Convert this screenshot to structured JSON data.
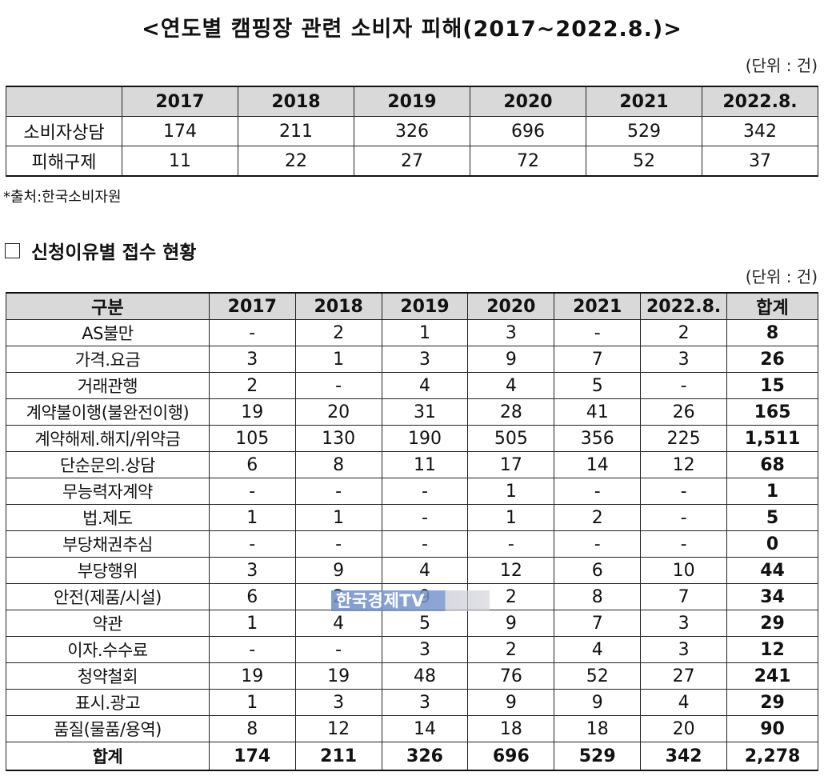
{
  "title": "<연도별 캠핑장 관련 소비자 피해(2017~2022.8.)>",
  "unit_top": "(단위 : 건)",
  "table1": {
    "headers": [
      "",
      "2017",
      "2018",
      "2019",
      "2020",
      "2021",
      "2022.8."
    ],
    "rows": [
      [
        "소비자상담",
        "174",
        "211",
        "326",
        "696",
        "529",
        "342"
      ],
      [
        "피해구제",
        "11",
        "22",
        "27",
        "72",
        "52",
        "37"
      ]
    ]
  },
  "source": "*출처:한국소비자원",
  "section_title": "신청이유별 접수 현황",
  "unit_bottom": "(단위 : 건)",
  "table2": {
    "headers": [
      "구분",
      "2017",
      "2018",
      "2019",
      "2020",
      "2021",
      "2022.8.",
      "합계"
    ],
    "rows": [
      [
        "AS불만",
        "-",
        "2",
        "1",
        "3",
        "-",
        "2",
        "8"
      ],
      [
        "가격.요금",
        "3",
        "1",
        "3",
        "9",
        "7",
        "3",
        "26"
      ],
      [
        "거래관행",
        "2",
        "-",
        "4",
        "4",
        "5",
        "-",
        "15"
      ],
      [
        "계약불이행(불완전이행)",
        "19",
        "20",
        "31",
        "28",
        "41",
        "26",
        "165"
      ],
      [
        "계약해제.해지/위약금",
        "105",
        "130",
        "190",
        "505",
        "356",
        "225",
        "1,511"
      ],
      [
        "단순문의.상담",
        "6",
        "8",
        "11",
        "17",
        "14",
        "12",
        "68"
      ],
      [
        "무능력자계약",
        "-",
        "-",
        "-",
        "1",
        "-",
        "-",
        "1"
      ],
      [
        "법.제도",
        "1",
        "1",
        "-",
        "1",
        "2",
        "-",
        "5"
      ],
      [
        "부당채권추심",
        "-",
        "-",
        "-",
        "-",
        "-",
        "-",
        "0"
      ],
      [
        "부당행위",
        "3",
        "9",
        "4",
        "12",
        "6",
        "10",
        "44"
      ],
      [
        "안전(제품/시설)",
        "6",
        "2",
        "9",
        "2",
        "8",
        "7",
        "34"
      ],
      [
        "약관",
        "1",
        "4",
        "5",
        "9",
        "7",
        "3",
        "29"
      ],
      [
        "이자.수수료",
        "-",
        "-",
        "3",
        "2",
        "4",
        "3",
        "12"
      ],
      [
        "청약철회",
        "19",
        "19",
        "48",
        "76",
        "52",
        "27",
        "241"
      ],
      [
        "표시.광고",
        "1",
        "3",
        "3",
        "9",
        "9",
        "4",
        "29"
      ],
      [
        "품질(물품/용역)",
        "8",
        "12",
        "14",
        "18",
        "18",
        "20",
        "90"
      ]
    ],
    "total": [
      "합계",
      "174",
      "211",
      "326",
      "696",
      "529",
      "342",
      "2,278"
    ]
  },
  "watermark": "한국경제TV"
}
